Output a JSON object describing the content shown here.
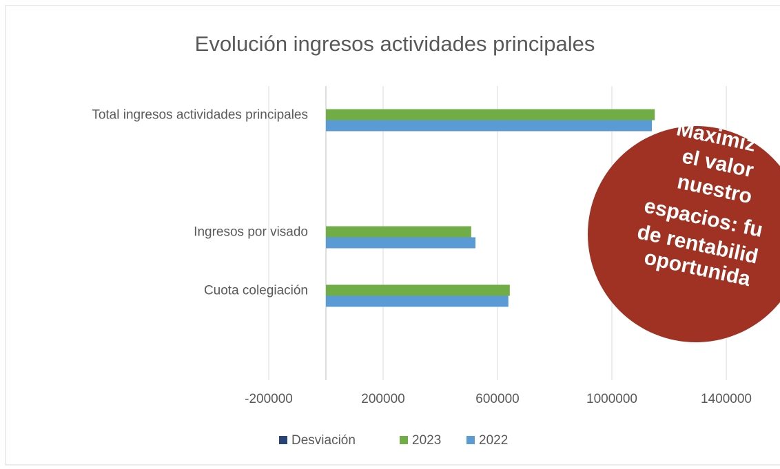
{
  "chart_data": {
    "type": "bar",
    "orientation": "horizontal",
    "title": "Evolución ingresos actividades principales",
    "categories": [
      "Total ingresos actividades principales",
      null,
      "Ingresos por visado",
      "Cuota colegiación",
      null
    ],
    "series": [
      {
        "name": "Desviación",
        "color": "#264478",
        "values": [
          null,
          null,
          null,
          null,
          null
        ]
      },
      {
        "name": "2023",
        "color": "#70ad47",
        "values": [
          1150000,
          null,
          508000,
          643000,
          null
        ]
      },
      {
        "name": "2022",
        "color": "#5b9bd5",
        "values": [
          1140000,
          null,
          523000,
          638000,
          null
        ]
      }
    ],
    "xlim": [
      -200000,
      1600000
    ],
    "xticks": [
      -200000,
      200000,
      600000,
      1000000,
      1400000
    ],
    "grid": true,
    "legend": "bottom"
  },
  "overlay": {
    "color": "#a03224",
    "lines": [
      "Maximiz",
      "el valor",
      "nuestro",
      "espacios: fu",
      "de rentabilid",
      "oportunida"
    ]
  }
}
